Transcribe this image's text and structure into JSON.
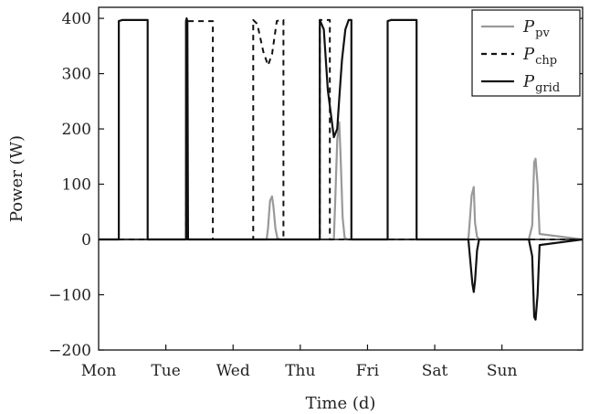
{
  "chart_data": {
    "type": "line",
    "xlabel": "Time (d)",
    "ylabel": "Power (W)",
    "xlim": [
      0,
      7.2
    ],
    "ylim": [
      -200,
      420
    ],
    "x_tick_labels": [
      "Mon",
      "Tue",
      "Wed",
      "Thu",
      "Fri",
      "Sat",
      "Sun"
    ],
    "y_ticks": [
      -200,
      -100,
      0,
      100,
      200,
      300,
      400
    ],
    "grid": false,
    "legend_position": "top-right",
    "series": [
      {
        "name": "P_pv",
        "label_main": "P",
        "label_sub": "pv",
        "color": "#999999",
        "dash": "solid",
        "x": [
          0,
          2.5,
          2.52,
          2.55,
          2.58,
          2.6,
          2.63,
          2.66,
          2.7,
          3.5,
          3.52,
          3.55,
          3.58,
          3.6,
          3.63,
          3.66,
          3.7,
          5.5,
          5.52,
          5.55,
          5.58,
          5.6,
          5.63,
          5.66,
          6.4,
          6.45,
          6.48,
          6.5,
          6.53,
          6.56,
          7.2
        ],
        "values": [
          0,
          0,
          20,
          70,
          78,
          60,
          20,
          2,
          0,
          0,
          70,
          180,
          212,
          150,
          40,
          3,
          0,
          0,
          30,
          80,
          95,
          30,
          5,
          0,
          0,
          25,
          140,
          146,
          100,
          10,
          0
        ]
      },
      {
        "name": "P_chp",
        "label_main": "P",
        "label_sub": "chp",
        "color": "#111111",
        "dash": "dashed",
        "x": [
          0,
          1.3,
          1.31,
          1.32,
          1.33,
          1.43,
          1.7,
          1.7,
          2.3,
          2.3,
          2.36,
          2.45,
          2.52,
          2.58,
          2.65,
          2.7,
          2.75,
          2.75,
          3.29,
          3.29,
          3.31,
          3.44,
          3.44,
          7.2
        ],
        "values": [
          0,
          0,
          395,
          400,
          395,
          395,
          395,
          0,
          0,
          397,
          390,
          340,
          315,
          335,
          395,
          397,
          397,
          0,
          0,
          397,
          397,
          397,
          0,
          0
        ]
      },
      {
        "name": "P_grid",
        "label_main": "P",
        "label_sub": "grid",
        "color": "#111111",
        "dash": "solid",
        "x": [
          0,
          0.3,
          0.3,
          0.35,
          0.55,
          0.73,
          0.73,
          1.3,
          1.3,
          1.31,
          1.32,
          1.33,
          2.3,
          2.3,
          3.29,
          3.29,
          3.35,
          3.41,
          3.5,
          3.55,
          3.58,
          3.62,
          3.67,
          3.72,
          3.76,
          3.76,
          4.3,
          4.3,
          4.35,
          4.55,
          4.73,
          4.73,
          5.5,
          5.53,
          5.56,
          5.58,
          5.6,
          5.63,
          5.66,
          6.4,
          6.45,
          6.48,
          6.5,
          6.53,
          6.56,
          7.2
        ],
        "values": [
          0,
          0,
          395,
          397,
          397,
          397,
          0,
          0,
          395,
          400,
          395,
          0,
          0,
          0,
          0,
          397,
          380,
          270,
          185,
          200,
          255,
          325,
          380,
          397,
          397,
          0,
          0,
          395,
          397,
          397,
          397,
          0,
          0,
          -40,
          -80,
          -95,
          -75,
          -20,
          0,
          0,
          -30,
          -140,
          -145,
          -100,
          -10,
          0
        ]
      }
    ]
  }
}
